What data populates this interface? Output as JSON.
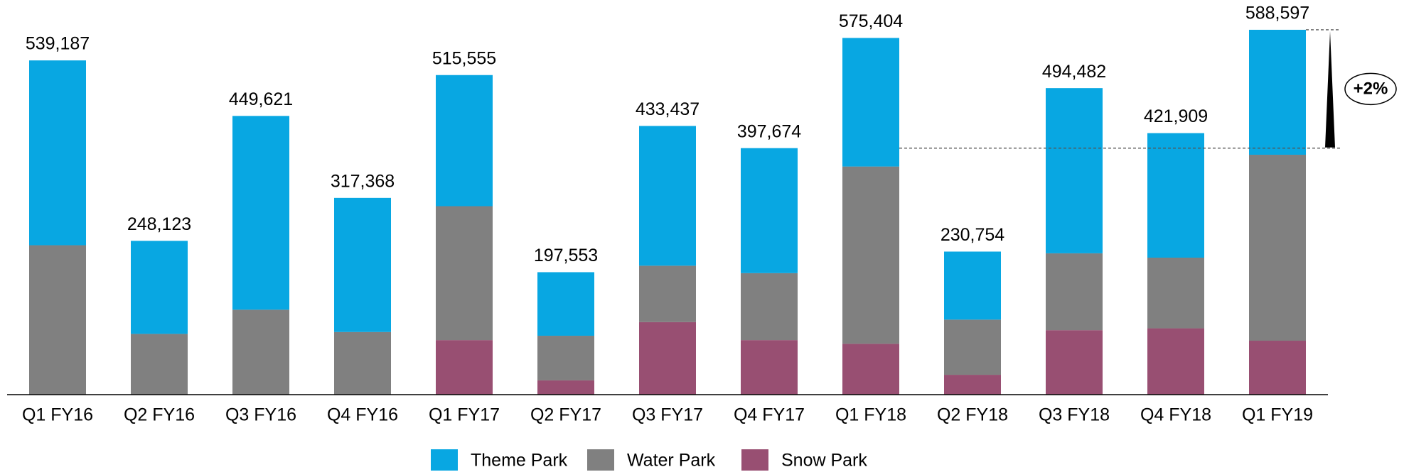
{
  "chart_data": {
    "type": "stacked_bar",
    "categories": [
      "Q1 FY16",
      "Q2 FY16",
      "Q3 FY16",
      "Q4 FY16",
      "Q1 FY17",
      "Q2 FY17",
      "Q3 FY17",
      "Q4 FY17",
      "Q1 FY18",
      "Q2 FY18",
      "Q3 FY18",
      "Q4 FY18",
      "Q1 FY19"
    ],
    "series": [
      {
        "name": "Theme Park",
        "color": "#08a7e2",
        "values": [
          298187,
          150123,
          312621,
          216368,
          211555,
          102553,
          225437,
          201674,
          207404,
          109754,
          266482,
          200909,
          201597
        ]
      },
      {
        "name": "Water Park",
        "color": "#808080",
        "values": [
          241000,
          98000,
          137000,
          101000,
          216000,
          72000,
          91000,
          108000,
          286000,
          89000,
          124000,
          114000,
          300000
        ]
      },
      {
        "name": "Snow Park",
        "color": "#984f72",
        "values": [
          0,
          0,
          0,
          0,
          88000,
          23000,
          117000,
          88000,
          82000,
          32000,
          104000,
          107000,
          87000
        ]
      }
    ],
    "totals": [
      "539,187",
      "248,123",
      "449,621",
      "317,368",
      "515,555",
      "197,553",
      "433,437",
      "397,674",
      "575,404",
      "230,754",
      "494,482",
      "421,909",
      "588,597"
    ],
    "annotation": "+2%",
    "ylim": [
      0,
      600000
    ],
    "legend": "bottom"
  }
}
